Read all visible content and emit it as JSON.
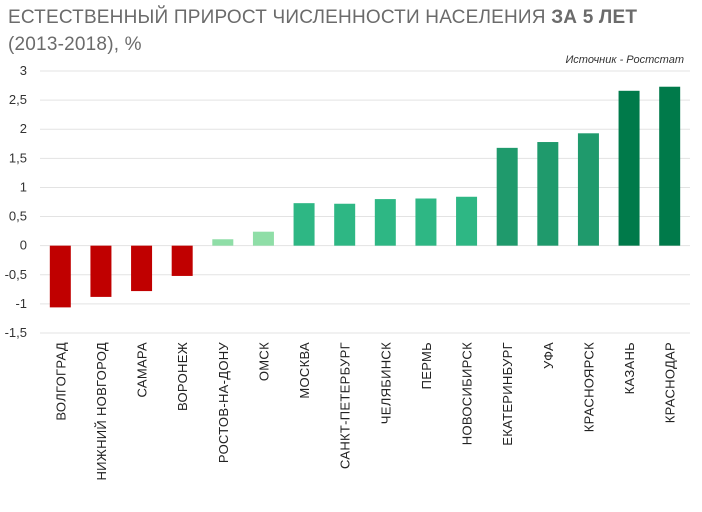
{
  "chart_data": {
    "type": "bar",
    "title_main": "ЕСТЕСТВЕННЫЙ ПРИРОСТ ЧИСЛЕННОСТИ НАСЕЛЕНИЯ",
    "title_bold": "ЗА 5 ЛЕТ",
    "subtitle": "(2013-2018), %",
    "source": "Источник - Ростстат",
    "xlabel": "",
    "ylabel": "",
    "ylim": [
      -1.5,
      3
    ],
    "yticks": [
      3,
      2.5,
      2,
      1.5,
      1,
      0.5,
      0,
      -0.5,
      -1,
      -1.5
    ],
    "ytick_labels": [
      "3",
      "2,5",
      "2",
      "1,5",
      "1",
      "0,5",
      "0",
      "-0,5",
      "-1",
      "-1,5"
    ],
    "grid": true,
    "categories": [
      "ВОЛГОГРАД",
      "НИЖНИЙ НОВГОРОД",
      "САМАРА",
      "ВОРОНЕЖ",
      "РОСТОВ-НА-ДОНУ",
      "ОМСК",
      "МОСКВА",
      "САНКТ-ПЕТЕРБУРГ",
      "ЧЕЛЯБИНСК",
      "ПЕРМЬ",
      "НОВОСИБИРСК",
      "ЕКАТЕРИНБУРГ",
      "УФА",
      "КРАСНОЯРСК",
      "КАЗАНЬ",
      "КРАСНОДАР"
    ],
    "values": [
      -1.06,
      -0.88,
      -0.78,
      -0.52,
      0.11,
      0.24,
      0.73,
      0.72,
      0.8,
      0.81,
      0.84,
      1.68,
      1.78,
      1.93,
      2.66,
      2.73
    ],
    "colors": [
      "#c00000",
      "#c00000",
      "#c00000",
      "#c00000",
      "#8fdea7",
      "#8fdea7",
      "#2eb784",
      "#2eb784",
      "#2eb784",
      "#2eb784",
      "#2eb784",
      "#1f9a6c",
      "#1f9a6c",
      "#1f9a6c",
      "#007a4a",
      "#007a4a"
    ]
  }
}
